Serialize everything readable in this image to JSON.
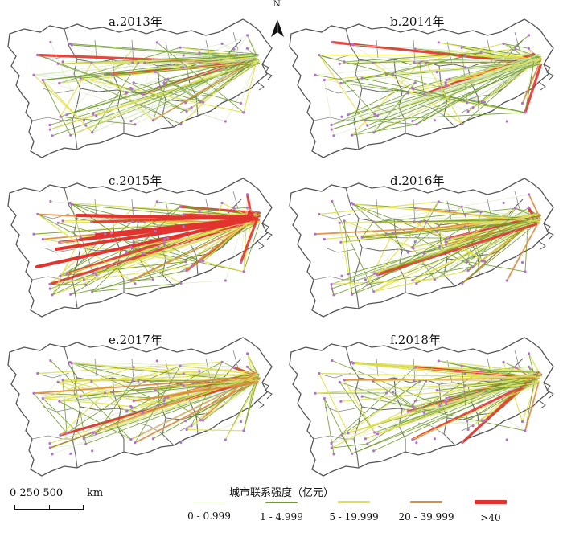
{
  "north_label": "N",
  "panels": [
    {
      "title": "a.2013年"
    },
    {
      "title": "b.2014年"
    },
    {
      "title": "c.2015年"
    },
    {
      "title": "d.2016年"
    },
    {
      "title": "e.2017年"
    },
    {
      "title": "f.2018年"
    }
  ],
  "scalebar": {
    "numbers": "0   250 500",
    "unit": "km"
  },
  "legend": {
    "title": "城市联系强度（亿元）",
    "items": [
      {
        "label": "0 - 0.999",
        "color": "#cfe3b4"
      },
      {
        "label": "1 - 4.999",
        "color": "#6f9a2a"
      },
      {
        "label": "5 - 19.999",
        "color": "#e2e04a"
      },
      {
        "label": "20 - 39.999",
        "color": "#e08a3c"
      },
      {
        "label": ">40",
        "color": "#e2332e"
      }
    ]
  },
  "colors": {
    "boundary": "#555555",
    "city": "#b56fd1"
  }
}
